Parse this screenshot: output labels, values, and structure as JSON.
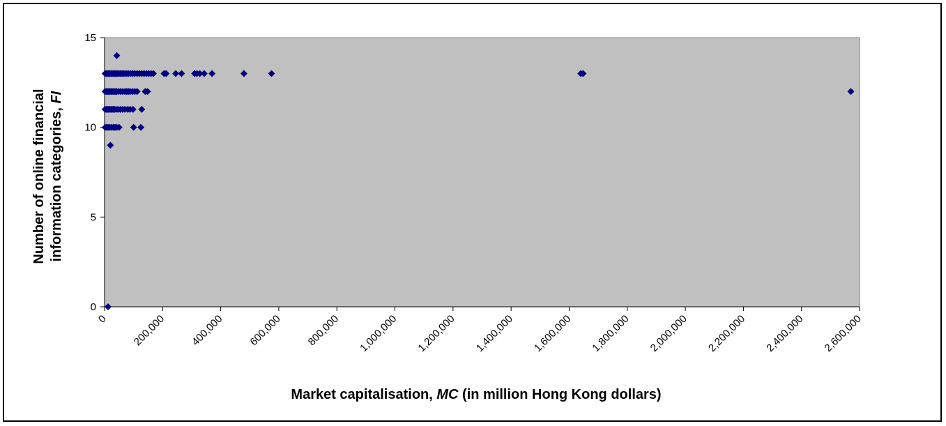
{
  "chart_data": {
    "type": "scatter",
    "title": "",
    "xlabel_parts": [
      "Market capitalisation, ",
      "MC",
      "  (in million Hong Kong dollars)"
    ],
    "ylabel_line1": "Number of online financial",
    "ylabel_line2_parts": [
      "information categories, ",
      "FI"
    ],
    "xlim": [
      0,
      2600000
    ],
    "ylim": [
      0,
      15
    ],
    "x_ticks": [
      0,
      200000,
      400000,
      600000,
      800000,
      1000000,
      1200000,
      1400000,
      1600000,
      1800000,
      2000000,
      2200000,
      2400000,
      2600000
    ],
    "x_tick_labels": [
      "0",
      "200,000",
      "400,000",
      "600,000",
      "800,000",
      "1,000,000",
      "1,200,000",
      "1,400,000",
      "1,600,000",
      "1,800,000",
      "2,000,000",
      "2,200,000",
      "2,400,000",
      "2,600,000"
    ],
    "y_ticks": [
      0,
      5,
      10,
      15
    ],
    "y_tick_labels": [
      "0",
      "5",
      "10",
      "15"
    ],
    "grid": false,
    "legend": "none",
    "plot_bg_color": "#c0c0c0",
    "marker_color": "#000080",
    "series": [
      {
        "points": [
          [
            2000,
            13
          ],
          [
            6000,
            13
          ],
          [
            10000,
            13
          ],
          [
            14000,
            13
          ],
          [
            18000,
            13
          ],
          [
            22000,
            13
          ],
          [
            26000,
            13
          ],
          [
            30000,
            13
          ],
          [
            34000,
            13
          ],
          [
            38000,
            13
          ],
          [
            42000,
            13
          ],
          [
            46000,
            13
          ],
          [
            50000,
            13
          ],
          [
            55000,
            13
          ],
          [
            60000,
            13
          ],
          [
            65000,
            13
          ],
          [
            70000,
            13
          ],
          [
            76000,
            13
          ],
          [
            82000,
            13
          ],
          [
            90000,
            13
          ],
          [
            97000,
            13
          ],
          [
            104000,
            13
          ],
          [
            112000,
            13
          ],
          [
            120000,
            13
          ],
          [
            128000,
            13
          ],
          [
            136000,
            13
          ],
          [
            144000,
            13
          ],
          [
            152000,
            13
          ],
          [
            160000,
            13
          ],
          [
            168000,
            13
          ],
          [
            205000,
            13
          ],
          [
            212000,
            13
          ],
          [
            245000,
            13
          ],
          [
            265000,
            13
          ],
          [
            310000,
            13
          ],
          [
            318000,
            13
          ],
          [
            328000,
            13
          ],
          [
            343000,
            13
          ],
          [
            370000,
            13
          ],
          [
            480000,
            13
          ],
          [
            575000,
            13
          ],
          [
            1640000,
            13
          ],
          [
            1648000,
            13
          ],
          [
            2000,
            12
          ],
          [
            6000,
            12
          ],
          [
            10000,
            12
          ],
          [
            14000,
            12
          ],
          [
            18000,
            12
          ],
          [
            22000,
            12
          ],
          [
            26000,
            12
          ],
          [
            30000,
            12
          ],
          [
            34000,
            12
          ],
          [
            38000,
            12
          ],
          [
            42000,
            12
          ],
          [
            48000,
            12
          ],
          [
            55000,
            12
          ],
          [
            62000,
            12
          ],
          [
            70000,
            12
          ],
          [
            76000,
            12
          ],
          [
            82000,
            12
          ],
          [
            88000,
            12
          ],
          [
            96000,
            12
          ],
          [
            104000,
            12
          ],
          [
            112000,
            12
          ],
          [
            140000,
            12
          ],
          [
            148000,
            12
          ],
          [
            2570000,
            12
          ],
          [
            2000,
            11
          ],
          [
            6000,
            11
          ],
          [
            10000,
            11
          ],
          [
            14000,
            11
          ],
          [
            18000,
            11
          ],
          [
            22000,
            11
          ],
          [
            26000,
            11
          ],
          [
            30000,
            11
          ],
          [
            34000,
            11
          ],
          [
            40000,
            11
          ],
          [
            46000,
            11
          ],
          [
            54000,
            11
          ],
          [
            62000,
            11
          ],
          [
            70000,
            11
          ],
          [
            80000,
            11
          ],
          [
            88000,
            11
          ],
          [
            98000,
            11
          ],
          [
            128000,
            11
          ],
          [
            2000,
            10
          ],
          [
            7000,
            10
          ],
          [
            12000,
            10
          ],
          [
            18000,
            10
          ],
          [
            24000,
            10
          ],
          [
            30000,
            10
          ],
          [
            36000,
            10
          ],
          [
            42000,
            10
          ],
          [
            50000,
            10
          ],
          [
            100000,
            10
          ],
          [
            125000,
            10
          ],
          [
            20000,
            9
          ],
          [
            42000,
            14
          ],
          [
            12000,
            0
          ]
        ]
      }
    ]
  }
}
